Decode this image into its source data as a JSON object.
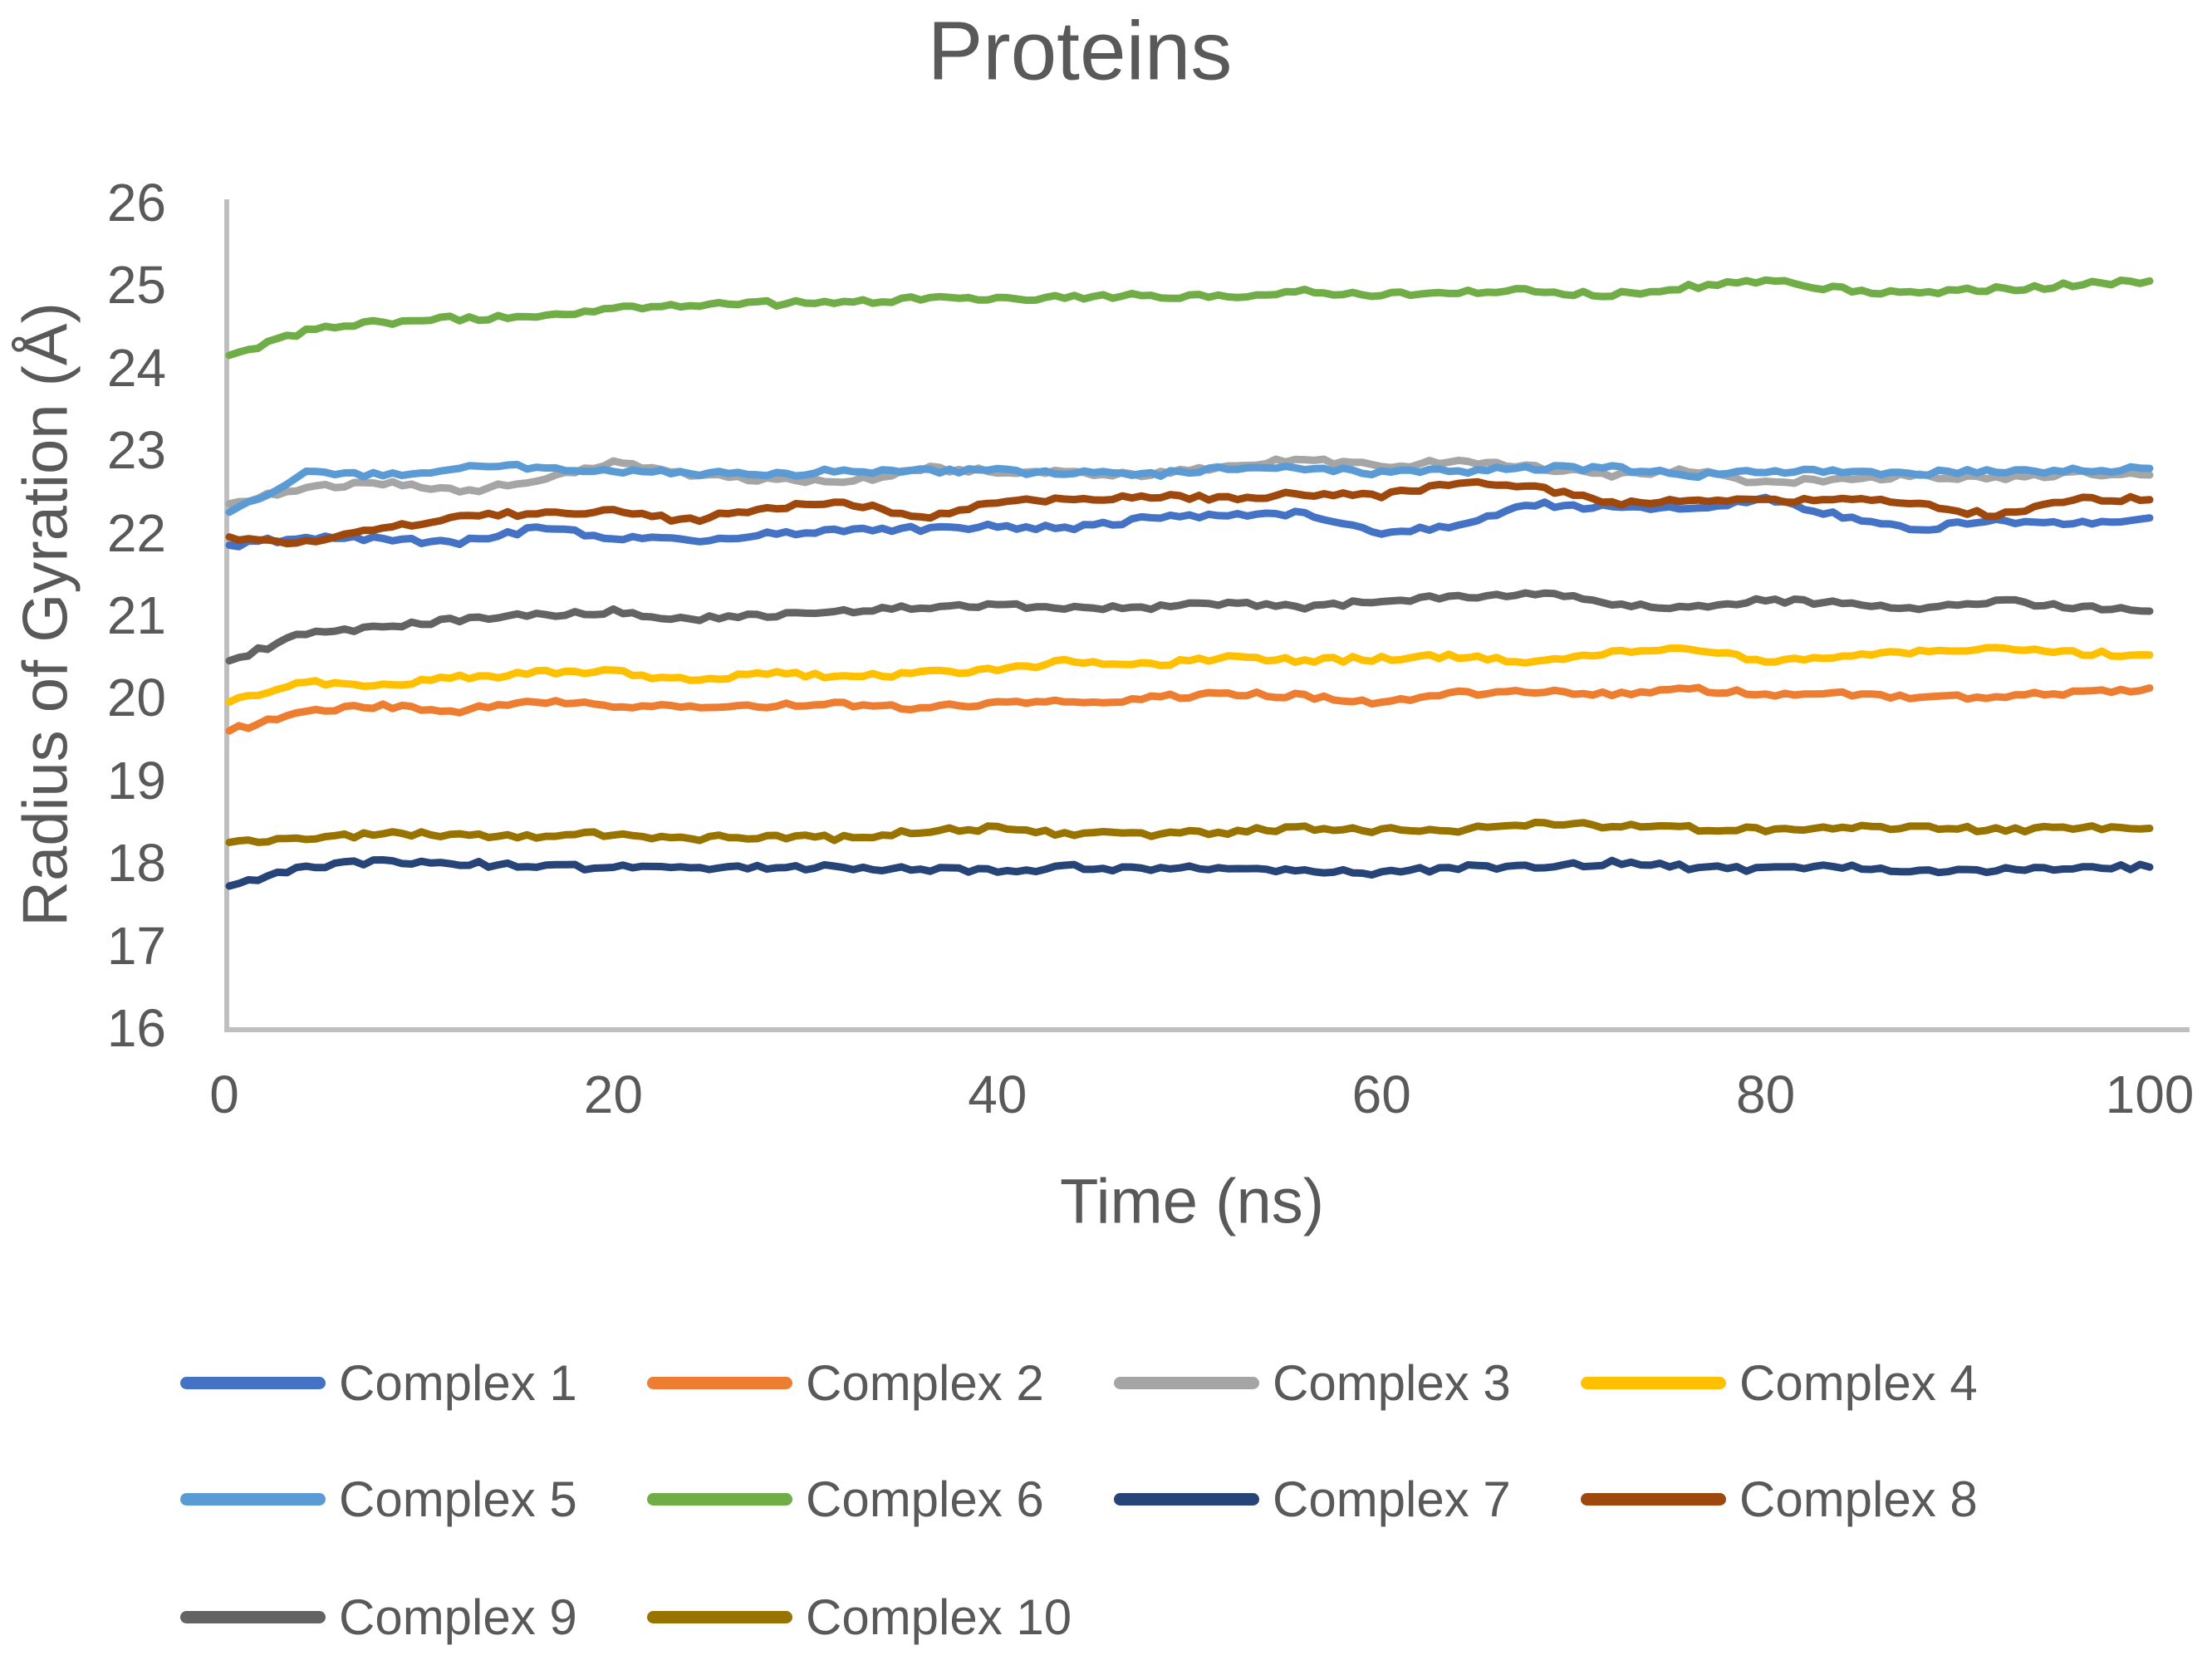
{
  "styles": {
    "background": "#FFFFFF",
    "text_color": "#595959",
    "axis_color": "#BFBFBF"
  },
  "chart_data": {
    "type": "line",
    "title": "Proteins",
    "xlabel": "Time (ns)",
    "ylabel": "Radius of Gyration (Å)",
    "xlim": [
      0,
      100
    ],
    "ylim": [
      16,
      26
    ],
    "xticks": [
      0,
      20,
      40,
      60,
      80,
      100
    ],
    "yticks": [
      26,
      25,
      24,
      23,
      22,
      21,
      20,
      19,
      18,
      17,
      16
    ],
    "grid": false,
    "legend_position": "bottom",
    "x": [
      0,
      4,
      8,
      12,
      16,
      20,
      24,
      28,
      32,
      36,
      40,
      44,
      48,
      52,
      56,
      60,
      64,
      68,
      72,
      76,
      80,
      84,
      88,
      92,
      96,
      100
    ],
    "series": [
      {
        "name": "Complex 1",
        "color": "#4472C4",
        "values": [
          21.85,
          21.95,
          21.92,
          21.88,
          22.05,
          21.95,
          21.9,
          22.0,
          22.02,
          22.05,
          22.08,
          22.05,
          22.18,
          22.2,
          22.25,
          21.98,
          22.1,
          22.35,
          22.3,
          22.28,
          22.4,
          22.2,
          22.05,
          22.15,
          22.1,
          22.18
        ]
      },
      {
        "name": "Complex 2",
        "color": "#ED7D31",
        "values": [
          19.6,
          19.85,
          19.9,
          19.85,
          19.95,
          19.9,
          19.88,
          19.9,
          19.92,
          19.88,
          19.95,
          19.95,
          20.0,
          20.05,
          20.02,
          19.95,
          20.05,
          20.08,
          20.05,
          20.1,
          20.05,
          20.05,
          20.0,
          20.02,
          20.05,
          20.12
        ]
      },
      {
        "name": "Complex 3",
        "color": "#A5A5A5",
        "values": [
          22.35,
          22.55,
          22.6,
          22.5,
          22.62,
          22.85,
          22.7,
          22.65,
          22.6,
          22.78,
          22.75,
          22.72,
          22.7,
          22.82,
          22.9,
          22.8,
          22.88,
          22.8,
          22.7,
          22.75,
          22.6,
          22.65,
          22.7,
          22.65,
          22.72,
          22.7
        ]
      },
      {
        "name": "Complex 4",
        "color": "#FFC000",
        "values": [
          19.95,
          20.2,
          20.15,
          20.25,
          20.3,
          20.32,
          20.2,
          20.3,
          20.25,
          20.3,
          20.35,
          20.45,
          20.4,
          20.5,
          20.45,
          20.48,
          20.5,
          20.42,
          20.55,
          20.6,
          20.45,
          20.5,
          20.55,
          20.6,
          20.55,
          20.52
        ]
      },
      {
        "name": "Complex 5",
        "color": "#5B9BD5",
        "values": [
          22.25,
          22.72,
          22.7,
          22.78,
          22.8,
          22.75,
          22.72,
          22.7,
          22.75,
          22.75,
          22.75,
          22.72,
          22.7,
          22.78,
          22.78,
          22.73,
          22.75,
          22.78,
          22.78,
          22.7,
          22.75,
          22.75,
          22.72,
          22.75,
          22.75,
          22.78
        ]
      },
      {
        "name": "Complex 6",
        "color": "#70AD47",
        "values": [
          24.15,
          24.45,
          24.55,
          24.6,
          24.6,
          24.72,
          24.75,
          24.78,
          24.78,
          24.85,
          24.82,
          24.85,
          24.88,
          24.85,
          24.92,
          24.88,
          24.92,
          24.93,
          24.88,
          24.98,
          25.05,
          24.95,
          24.9,
          24.95,
          25.0,
          25.05
        ]
      },
      {
        "name": "Complex 7",
        "color": "#264478",
        "values": [
          17.72,
          17.95,
          18.02,
          18.0,
          17.95,
          17.95,
          17.92,
          17.95,
          17.95,
          17.92,
          17.9,
          17.95,
          17.92,
          17.95,
          17.9,
          17.88,
          17.95,
          17.95,
          18.0,
          17.95,
          17.92,
          17.95,
          17.9,
          17.92,
          17.95,
          17.95
        ]
      },
      {
        "name": "Complex 8",
        "color": "#9E480E",
        "values": [
          21.95,
          21.88,
          22.05,
          22.18,
          22.25,
          22.25,
          22.15,
          22.3,
          22.38,
          22.18,
          22.38,
          22.4,
          22.45,
          22.42,
          22.48,
          22.45,
          22.62,
          22.55,
          22.35,
          22.42,
          22.38,
          22.42,
          22.35,
          22.2,
          22.42,
          22.4
        ]
      },
      {
        "name": "Complex 9",
        "color": "#636363",
        "values": [
          20.45,
          20.78,
          20.85,
          20.95,
          21.0,
          21.05,
          20.95,
          21.0,
          21.05,
          21.1,
          21.12,
          21.1,
          21.1,
          21.15,
          21.1,
          21.18,
          21.22,
          21.28,
          21.15,
          21.1,
          21.18,
          21.15,
          21.1,
          21.18,
          21.1,
          21.05
        ]
      },
      {
        "name": "Complex 10",
        "color": "#997300",
        "values": [
          18.25,
          18.3,
          18.35,
          18.35,
          18.32,
          18.35,
          18.3,
          18.32,
          18.3,
          18.38,
          18.42,
          18.35,
          18.35,
          18.38,
          18.42,
          18.4,
          18.4,
          18.48,
          18.45,
          18.42,
          18.4,
          18.42,
          18.45,
          18.4,
          18.42,
          18.42
        ]
      }
    ]
  }
}
